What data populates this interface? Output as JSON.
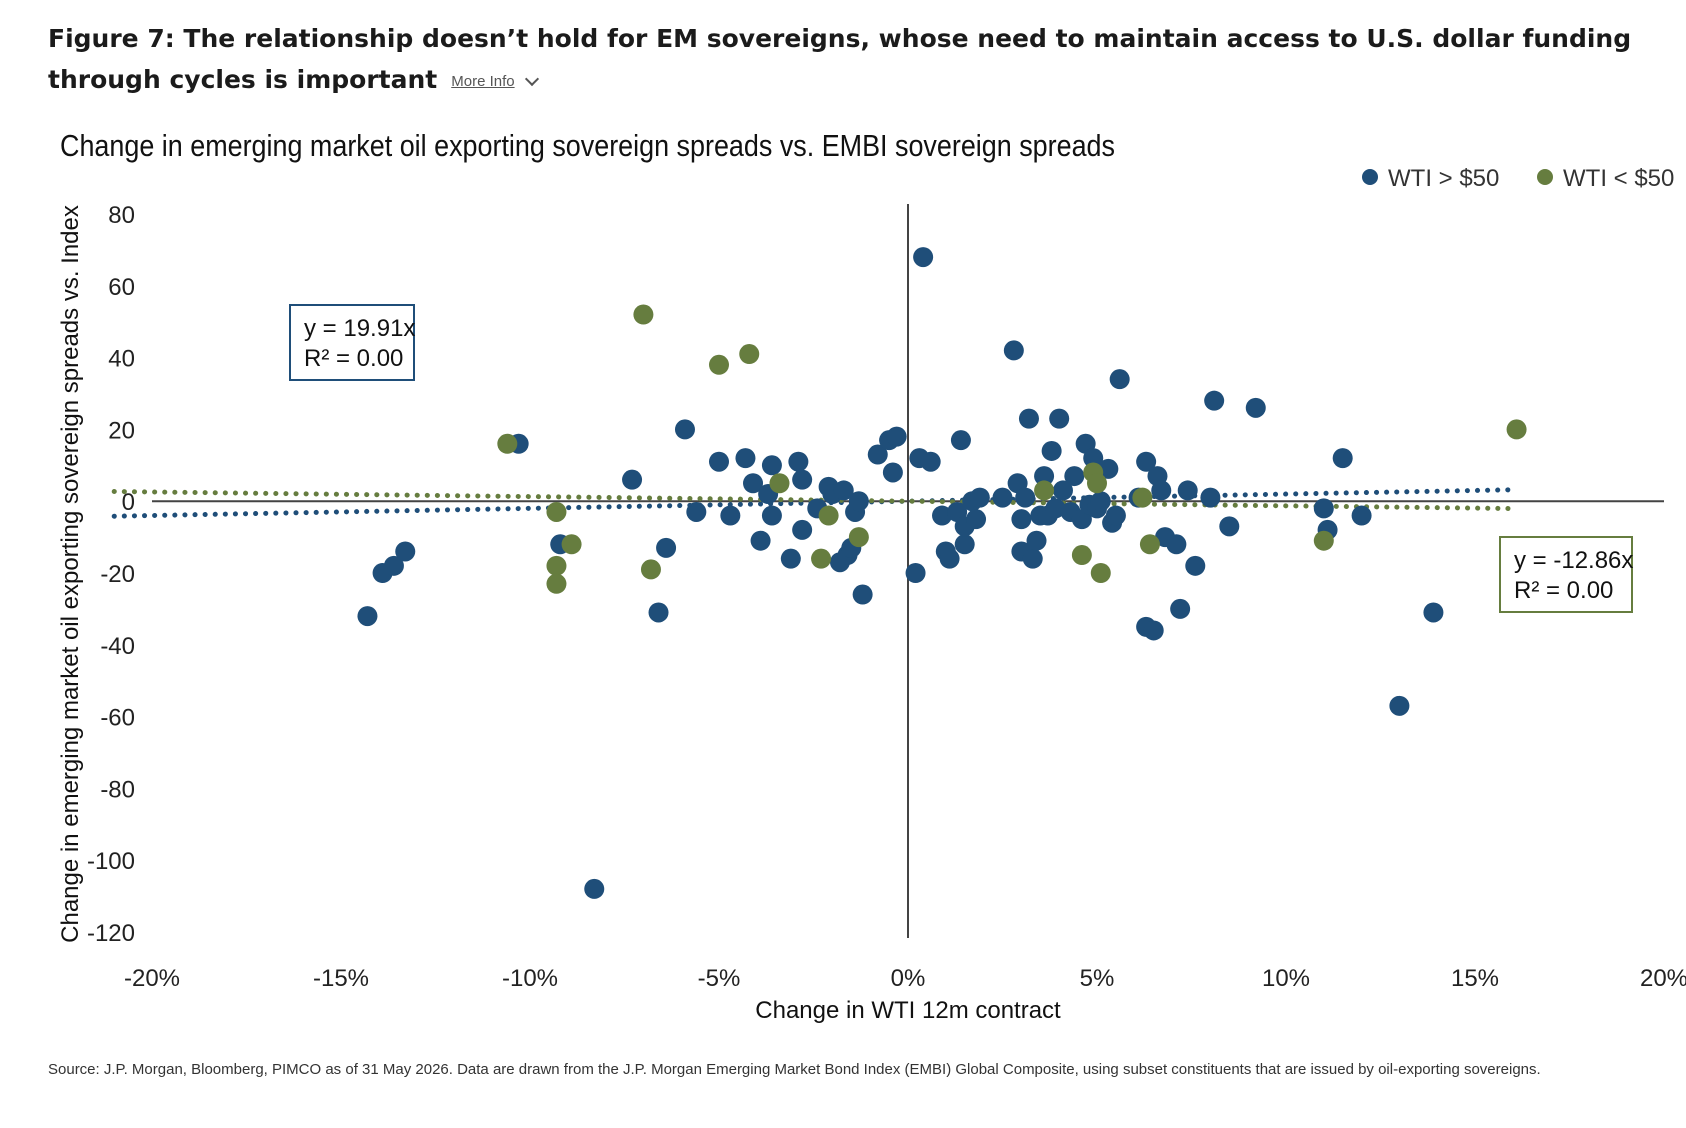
{
  "header": {
    "figure_title": "Figure 7: The relationship doesn’t hold for EM sovereigns, whose need to maintain access to U.S. dollar funding through cycles is important",
    "more_info_label": "More Info"
  },
  "colors": {
    "blue": "#1f4e79",
    "green": "#667d3f",
    "axis": "#444444"
  },
  "source_note": "Source: J.P. Morgan, Bloomberg, PIMCO as of 31 May 2026. Data are drawn from the J.P. Morgan Emerging Market Bond Index (EMBI) Global Composite, using subset constituents that are issued by oil-exporting sovereigns.",
  "chart_data": {
    "type": "scatter",
    "title": "Change in emerging market oil exporting sovereign spreads vs. EMBI sovereign spreads",
    "xlabel": "Change in WTI 12m contract",
    "ylabel": "Change in emerging market oil exporting sovereign spreads vs. Index",
    "xlim": [
      -20,
      20
    ],
    "ylim": [
      -120,
      80
    ],
    "x_ticks": [
      "-20%",
      "-15%",
      "-10%",
      "-5%",
      "0%",
      "5%",
      "10%",
      "15%",
      "20%"
    ],
    "y_ticks": [
      "80",
      "60",
      "40",
      "20",
      "0",
      "-20",
      "-40",
      "-60",
      "-80",
      "-100",
      "-120"
    ],
    "legend_position": "top-right",
    "grid": false,
    "series": [
      {
        "name": "WTI > $50",
        "color": "#1f4e79",
        "trendline": {
          "equation": "y = 19.91x",
          "r2": "R² = 0.00",
          "slope_per_pct": 0.1991,
          "x_range": [
            -21,
            16
          ]
        },
        "points": [
          [
            -14.3,
            -32
          ],
          [
            -13.9,
            -20
          ],
          [
            -13.6,
            -18
          ],
          [
            -13.3,
            -14
          ],
          [
            -10.3,
            16
          ],
          [
            -9.2,
            -12
          ],
          [
            -8.3,
            -108
          ],
          [
            -7.3,
            6
          ],
          [
            -6.6,
            -31
          ],
          [
            -6.4,
            -13
          ],
          [
            -5.9,
            20
          ],
          [
            -5.6,
            -3
          ],
          [
            -5.0,
            11
          ],
          [
            -4.7,
            -4
          ],
          [
            -4.3,
            12
          ],
          [
            -4.1,
            5
          ],
          [
            -3.9,
            -11
          ],
          [
            -3.7,
            2
          ],
          [
            -3.6,
            10
          ],
          [
            -3.6,
            -4
          ],
          [
            -3.1,
            -16
          ],
          [
            -2.9,
            11
          ],
          [
            -2.8,
            6
          ],
          [
            -2.8,
            -8
          ],
          [
            -2.4,
            -2
          ],
          [
            -2.1,
            4
          ],
          [
            -2.0,
            2
          ],
          [
            -1.8,
            -17
          ],
          [
            -1.7,
            3
          ],
          [
            -1.6,
            -15
          ],
          [
            -1.5,
            -13
          ],
          [
            -1.4,
            -3
          ],
          [
            -1.3,
            0
          ],
          [
            -1.2,
            -26
          ],
          [
            -0.8,
            13
          ],
          [
            -0.5,
            17
          ],
          [
            -0.4,
            8
          ],
          [
            -0.3,
            18
          ],
          [
            0.2,
            -20
          ],
          [
            0.3,
            12
          ],
          [
            0.4,
            68
          ],
          [
            0.6,
            11
          ],
          [
            0.9,
            -4
          ],
          [
            1.0,
            -14
          ],
          [
            1.1,
            -16
          ],
          [
            1.3,
            -3
          ],
          [
            1.4,
            17
          ],
          [
            1.5,
            -12
          ],
          [
            1.5,
            -7
          ],
          [
            1.7,
            0
          ],
          [
            1.8,
            -5
          ],
          [
            1.9,
            1
          ],
          [
            2.5,
            1
          ],
          [
            2.8,
            42
          ],
          [
            2.9,
            5
          ],
          [
            3.0,
            -14
          ],
          [
            3.0,
            -5
          ],
          [
            3.1,
            1
          ],
          [
            3.2,
            23
          ],
          [
            3.3,
            -16
          ],
          [
            3.4,
            -11
          ],
          [
            3.5,
            -4
          ],
          [
            3.6,
            7
          ],
          [
            3.7,
            -4
          ],
          [
            3.8,
            14
          ],
          [
            3.9,
            -2
          ],
          [
            4.0,
            23
          ],
          [
            4.1,
            3
          ],
          [
            4.3,
            -3
          ],
          [
            4.4,
            7
          ],
          [
            4.6,
            -5
          ],
          [
            4.7,
            16
          ],
          [
            4.8,
            -1
          ],
          [
            4.9,
            12
          ],
          [
            5.0,
            -2
          ],
          [
            5.1,
            0
          ],
          [
            5.3,
            9
          ],
          [
            5.4,
            -6
          ],
          [
            5.5,
            -4
          ],
          [
            5.6,
            34
          ],
          [
            6.1,
            1
          ],
          [
            6.3,
            11
          ],
          [
            6.3,
            -35
          ],
          [
            6.5,
            -36
          ],
          [
            6.6,
            7
          ],
          [
            6.7,
            3
          ],
          [
            6.8,
            -10
          ],
          [
            7.1,
            -12
          ],
          [
            7.2,
            -30
          ],
          [
            7.4,
            3
          ],
          [
            7.6,
            -18
          ],
          [
            8.0,
            1
          ],
          [
            8.1,
            28
          ],
          [
            8.5,
            -7
          ],
          [
            9.2,
            26
          ],
          [
            11.0,
            -2
          ],
          [
            11.1,
            -8
          ],
          [
            11.5,
            12
          ],
          [
            12.0,
            -4
          ],
          [
            13.0,
            -57
          ],
          [
            13.9,
            -31
          ]
        ]
      },
      {
        "name": "WTI < $50",
        "color": "#667d3f",
        "trendline": {
          "equation": "y = -12.86x",
          "r2": "R² = 0.00",
          "slope_per_pct": -0.1286,
          "x_range": [
            -21,
            16
          ]
        },
        "points": [
          [
            -10.6,
            16
          ],
          [
            -9.3,
            -3
          ],
          [
            -9.3,
            -18
          ],
          [
            -9.3,
            -23
          ],
          [
            -8.9,
            -12
          ],
          [
            -7.0,
            52
          ],
          [
            -6.8,
            -19
          ],
          [
            -5.0,
            38
          ],
          [
            -4.2,
            41
          ],
          [
            -3.4,
            5
          ],
          [
            -2.3,
            -16
          ],
          [
            -2.1,
            -4
          ],
          [
            -1.3,
            -10
          ],
          [
            3.6,
            3
          ],
          [
            4.6,
            -15
          ],
          [
            4.9,
            8
          ],
          [
            5.0,
            5
          ],
          [
            5.1,
            -20
          ],
          [
            6.2,
            1
          ],
          [
            6.4,
            -12
          ],
          [
            11.0,
            -11
          ],
          [
            16.1,
            20
          ]
        ]
      }
    ]
  }
}
